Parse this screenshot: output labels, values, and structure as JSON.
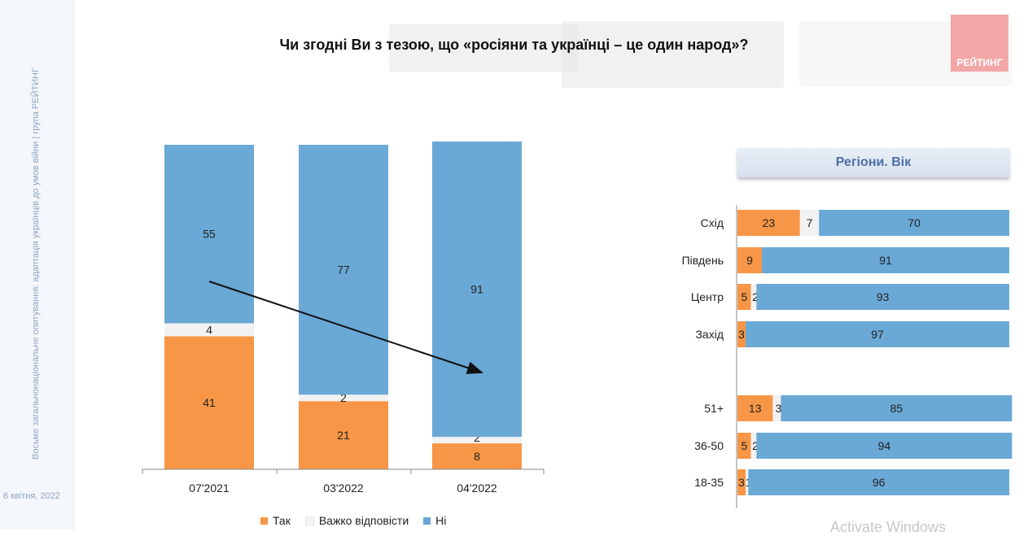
{
  "sidebar": {
    "vertical_text": "Восьме загальнонаціональне опитування: адаптація українців до умов війни | група РЕЙТИНГ",
    "date": "6 квітня, 2022"
  },
  "title": "Чи згодні Ви з тезою, що «росіяни та українці – це один народ»?",
  "logo_text": "РЕЙТИНГ",
  "colors": {
    "tak": "#f79646",
    "vazhko": "#f2f2f2",
    "ni": "#6aa8d6"
  },
  "legend": {
    "tak": "Так",
    "vazhko": "Важко відповісти",
    "ni": "Ні"
  },
  "panel_title": "Регіони. Вік",
  "watermark": "Activate Windows",
  "chart_data": [
    {
      "type": "bar",
      "stacked": true,
      "orientation": "vertical",
      "categories": [
        "07'2021",
        "03'2022",
        "04'2022"
      ],
      "series": [
        {
          "name": "Так",
          "values": [
            41,
            21,
            8
          ]
        },
        {
          "name": "Важко відповісти",
          "values": [
            4,
            2,
            2
          ]
        },
        {
          "name": "Ні",
          "values": [
            55,
            77,
            91
          ]
        }
      ],
      "ylim": [
        0,
        100
      ],
      "grid": false,
      "annotation": "arrow indicating downward trend"
    },
    {
      "type": "bar",
      "stacked": true,
      "orientation": "horizontal",
      "title": "Регіони. Вік",
      "categories": [
        "Схід",
        "Південь",
        "Центр",
        "Захід",
        "51+",
        "36-50",
        "18-35"
      ],
      "series": [
        {
          "name": "Так",
          "values": [
            23,
            9,
            5,
            3,
            13,
            5,
            3
          ]
        },
        {
          "name": "Важко відповісти",
          "values": [
            7,
            0,
            2,
            0,
            3,
            2,
            1
          ]
        },
        {
          "name": "Ні",
          "values": [
            70,
            91,
            93,
            97,
            85,
            94,
            96
          ]
        }
      ],
      "xlim": [
        0,
        100
      ],
      "grid": false
    }
  ]
}
